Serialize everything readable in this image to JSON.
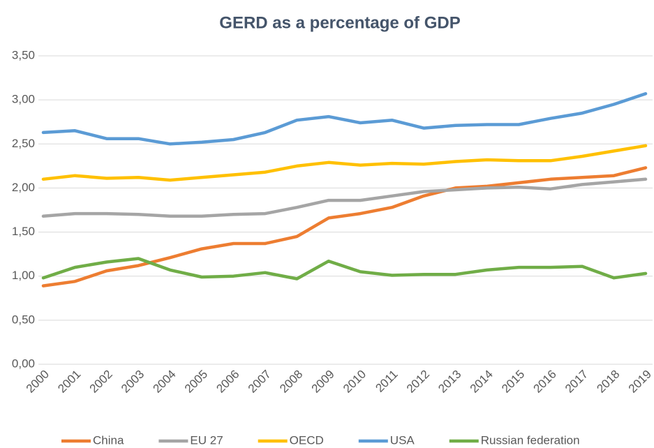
{
  "chart_data": {
    "type": "line",
    "title": "GERD as a percentage of GDP",
    "categories": [
      "2000",
      "2001",
      "2002",
      "2003",
      "2004",
      "2005",
      "2006",
      "2007",
      "2008",
      "2009",
      "2010",
      "2011",
      "2012",
      "2013",
      "2014",
      "2015",
      "2016",
      "2017",
      "2018",
      "2019"
    ],
    "series": [
      {
        "name": "China",
        "color": "#ed7d31",
        "values": [
          0.89,
          0.94,
          1.06,
          1.12,
          1.21,
          1.31,
          1.37,
          1.37,
          1.45,
          1.66,
          1.71,
          1.78,
          1.91,
          2.0,
          2.02,
          2.06,
          2.1,
          2.12,
          2.14,
          2.23
        ]
      },
      {
        "name": "EU 27",
        "color": "#a5a5a5",
        "values": [
          1.68,
          1.71,
          1.71,
          1.7,
          1.68,
          1.68,
          1.7,
          1.71,
          1.78,
          1.86,
          1.86,
          1.91,
          1.96,
          1.98,
          2.0,
          2.01,
          1.99,
          2.04,
          2.07,
          2.1
        ]
      },
      {
        "name": "OECD",
        "color": "#ffc000",
        "values": [
          2.1,
          2.14,
          2.11,
          2.12,
          2.09,
          2.12,
          2.15,
          2.18,
          2.25,
          2.29,
          2.26,
          2.28,
          2.27,
          2.3,
          2.32,
          2.31,
          2.31,
          2.36,
          2.42,
          2.48
        ]
      },
      {
        "name": "USA",
        "color": "#5b9bd5",
        "values": [
          2.63,
          2.65,
          2.56,
          2.56,
          2.5,
          2.52,
          2.55,
          2.63,
          2.77,
          2.81,
          2.74,
          2.77,
          2.68,
          2.71,
          2.72,
          2.72,
          2.79,
          2.85,
          2.95,
          3.07
        ]
      },
      {
        "name": "Russian federation",
        "color": "#70ad47",
        "values": [
          0.98,
          1.1,
          1.16,
          1.2,
          1.07,
          0.99,
          1.0,
          1.04,
          0.97,
          1.17,
          1.05,
          1.01,
          1.02,
          1.02,
          1.07,
          1.1,
          1.1,
          1.11,
          0.98,
          1.03
        ]
      }
    ],
    "ylim": [
      0,
      3.5
    ],
    "yticks": [
      {
        "value": 0,
        "label": "0,00"
      },
      {
        "value": 0.5,
        "label": "0,50"
      },
      {
        "value": 1,
        "label": "1,00"
      },
      {
        "value": 1.5,
        "label": "1,50"
      },
      {
        "value": 2,
        "label": "2,00"
      },
      {
        "value": 2.5,
        "label": "2,50"
      },
      {
        "value": 3,
        "label": "3,00"
      },
      {
        "value": 3.5,
        "label": "3,50"
      }
    ],
    "grid": true,
    "legend": "bottom"
  }
}
